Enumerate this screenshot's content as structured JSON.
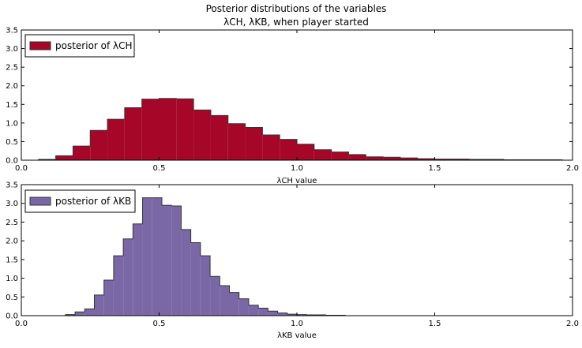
{
  "title_line1": "Posterior distributions of the variables",
  "title_line2": "λCH,  λKB,  when player started",
  "chart_data": [
    {
      "type": "histogram",
      "legend_label": "posterior of λCH",
      "xlabel": "λCH value",
      "xlim": [
        0.0,
        2.0
      ],
      "ylim": [
        0.0,
        3.5
      ],
      "xticks": [
        "0.0",
        "0.5",
        "1.0",
        "1.5",
        "2.0"
      ],
      "yticks": [
        "0.0",
        "0.5",
        "1.0",
        "1.5",
        "2.0",
        "2.5",
        "3.0",
        "3.5"
      ],
      "legend_position": "upper-left",
      "color": "#A60628",
      "bins": [
        0.0625,
        0.125,
        0.1875,
        0.25,
        0.3125,
        0.375,
        0.4375,
        0.5,
        0.5625,
        0.625,
        0.6875,
        0.75,
        0.8125,
        0.875,
        0.9375,
        1.0,
        1.0625,
        1.125,
        1.1875,
        1.25,
        1.3125,
        1.375,
        1.4375,
        1.5,
        1.5625,
        1.625,
        1.6875,
        1.75,
        1.8125,
        1.875,
        1.9375,
        1.9625
      ],
      "values": [
        0.02,
        0.12,
        0.38,
        0.8,
        1.1,
        1.41,
        1.64,
        1.66,
        1.65,
        1.35,
        1.2,
        0.98,
        0.88,
        0.68,
        0.56,
        0.43,
        0.28,
        0.22,
        0.15,
        0.09,
        0.08,
        0.06,
        0.04,
        0.03,
        0.03,
        0.02,
        0.02,
        0.01,
        0.01,
        0.01,
        0.01
      ]
    },
    {
      "type": "histogram",
      "legend_label": "posterior of λKB",
      "xlabel": "λKB value",
      "xlim": [
        0.0,
        2.0
      ],
      "ylim": [
        0.0,
        3.5
      ],
      "xticks": [
        "0.0",
        "0.5",
        "1.0",
        "1.5",
        "2.0"
      ],
      "yticks": [
        "0.0",
        "0.5",
        "1.0",
        "1.5",
        "2.0",
        "2.5",
        "3.0",
        "3.5"
      ],
      "legend_position": "upper-left",
      "color": "#7A68A6",
      "bins": [
        0.16,
        0.195,
        0.23,
        0.265,
        0.3,
        0.335,
        0.37,
        0.405,
        0.44,
        0.475,
        0.51,
        0.545,
        0.58,
        0.615,
        0.65,
        0.685,
        0.72,
        0.755,
        0.79,
        0.825,
        0.86,
        0.895,
        0.93,
        0.965,
        1.0,
        1.035,
        1.07,
        1.105,
        1.14,
        1.175
      ],
      "values": [
        0.03,
        0.1,
        0.18,
        0.55,
        0.95,
        1.6,
        2.05,
        2.45,
        3.15,
        3.15,
        2.95,
        2.93,
        2.3,
        1.95,
        1.6,
        1.05,
        0.8,
        0.62,
        0.45,
        0.28,
        0.2,
        0.12,
        0.07,
        0.04,
        0.03,
        0.02,
        0.02,
        0.01,
        0.01
      ]
    }
  ]
}
